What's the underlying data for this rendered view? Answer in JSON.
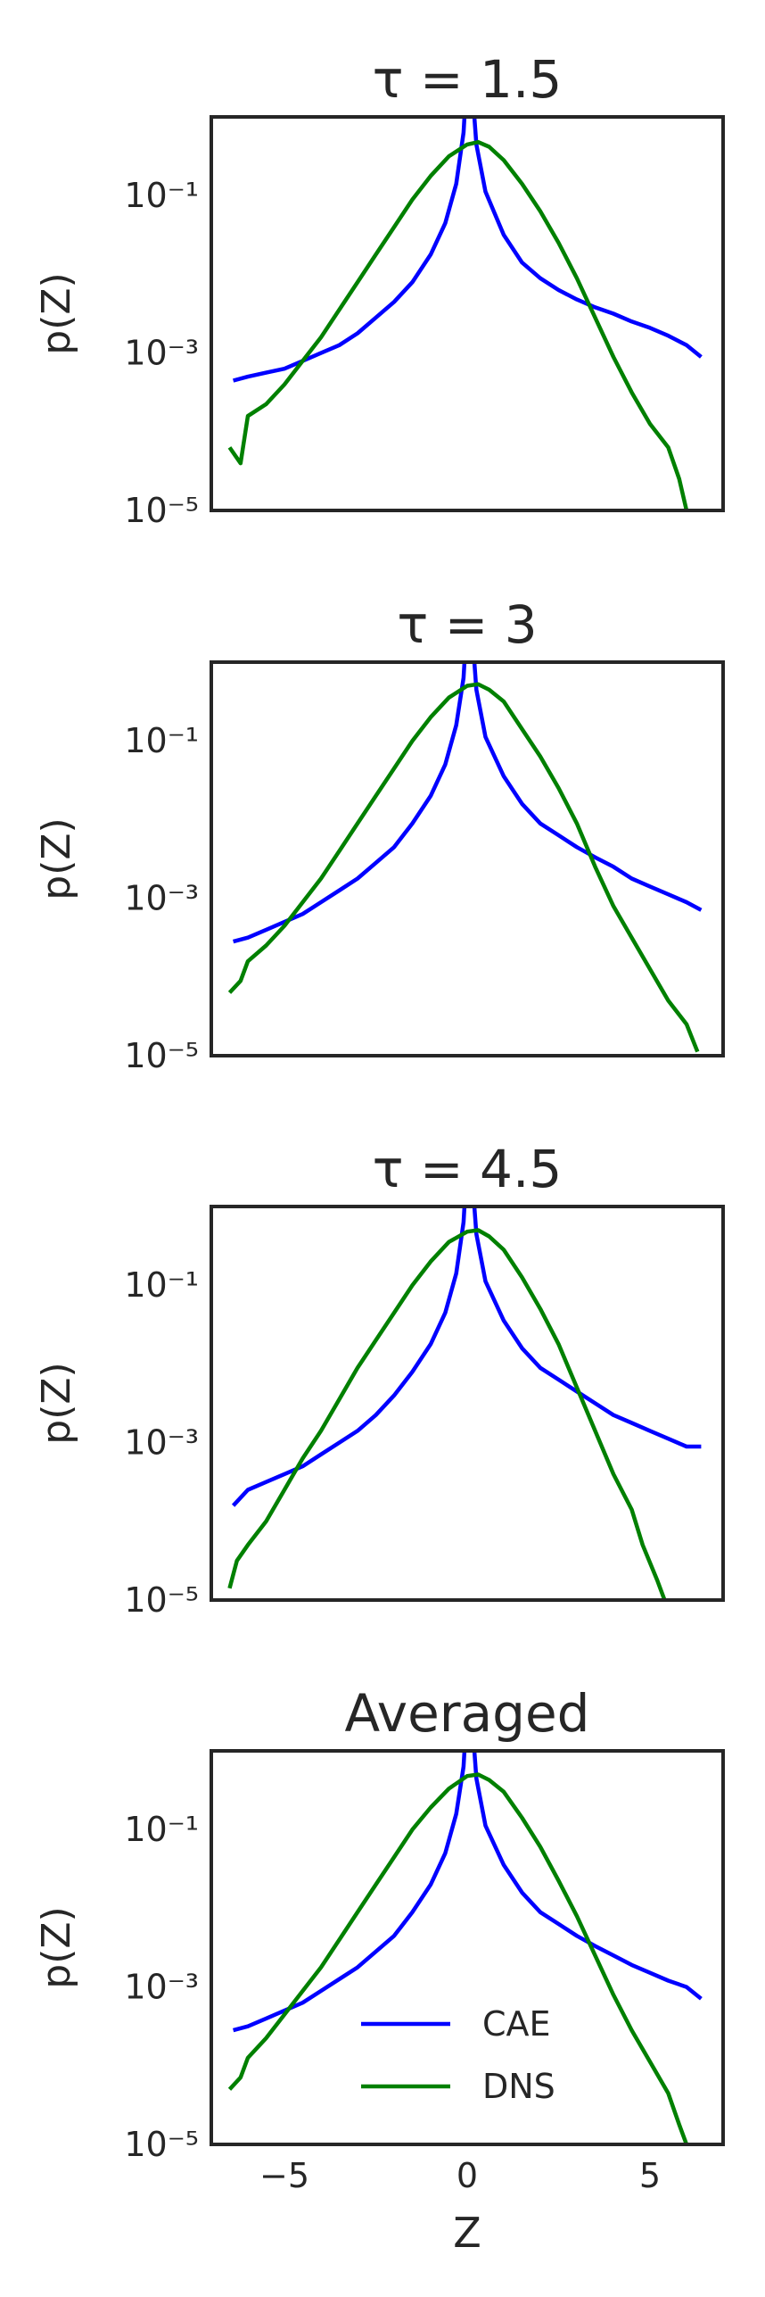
{
  "chart_data": [
    {
      "type": "line",
      "title": "τ = 1.5",
      "xlabel": "",
      "ylabel": "p(Z)",
      "xlim": [
        -7,
        7
      ],
      "ylim_log10": [
        -5,
        0
      ],
      "yscale": "log",
      "yticks": [
        "10⁻¹",
        "10⁻³",
        "10⁻⁵"
      ],
      "xticks": [],
      "grid": false,
      "series": [
        {
          "name": "CAE",
          "color": "#0000ff",
          "points": [
            [
              -6.4,
              -3.35
            ],
            [
              -6.0,
              -3.3
            ],
            [
              -5.5,
              -3.25
            ],
            [
              -5.0,
              -3.2
            ],
            [
              -4.5,
              -3.1
            ],
            [
              -4.0,
              -3.0
            ],
            [
              -3.5,
              -2.9
            ],
            [
              -3.0,
              -2.75
            ],
            [
              -2.5,
              -2.55
            ],
            [
              -2.0,
              -2.35
            ],
            [
              -1.5,
              -2.1
            ],
            [
              -1.0,
              -1.75
            ],
            [
              -0.6,
              -1.35
            ],
            [
              -0.3,
              -0.85
            ],
            [
              -0.1,
              -0.2
            ],
            [
              0.0,
              0.6
            ],
            [
              0.1,
              0.6
            ],
            [
              0.25,
              -0.35
            ],
            [
              0.5,
              -0.95
            ],
            [
              1.0,
              -1.5
            ],
            [
              1.5,
              -1.85
            ],
            [
              2.0,
              -2.05
            ],
            [
              2.5,
              -2.2
            ],
            [
              3.0,
              -2.32
            ],
            [
              3.5,
              -2.42
            ],
            [
              4.0,
              -2.5
            ],
            [
              4.5,
              -2.6
            ],
            [
              5.0,
              -2.68
            ],
            [
              5.5,
              -2.78
            ],
            [
              6.0,
              -2.9
            ],
            [
              6.4,
              -3.05
            ]
          ]
        },
        {
          "name": "DNS",
          "color": "#008000",
          "points": [
            [
              -6.5,
              -4.2
            ],
            [
              -6.2,
              -4.4
            ],
            [
              -6.0,
              -3.8
            ],
            [
              -5.5,
              -3.65
            ],
            [
              -5.0,
              -3.4
            ],
            [
              -4.5,
              -3.1
            ],
            [
              -4.0,
              -2.8
            ],
            [
              -3.5,
              -2.45
            ],
            [
              -3.0,
              -2.1
            ],
            [
              -2.5,
              -1.75
            ],
            [
              -2.0,
              -1.4
            ],
            [
              -1.5,
              -1.05
            ],
            [
              -1.0,
              -0.75
            ],
            [
              -0.5,
              -0.5
            ],
            [
              0.0,
              -0.35
            ],
            [
              0.3,
              -0.32
            ],
            [
              0.6,
              -0.38
            ],
            [
              1.0,
              -0.55
            ],
            [
              1.5,
              -0.85
            ],
            [
              2.0,
              -1.2
            ],
            [
              2.5,
              -1.6
            ],
            [
              3.0,
              -2.05
            ],
            [
              3.5,
              -2.55
            ],
            [
              4.0,
              -3.05
            ],
            [
              4.5,
              -3.5
            ],
            [
              5.0,
              -3.9
            ],
            [
              5.5,
              -4.2
            ],
            [
              5.8,
              -4.6
            ],
            [
              6.0,
              -5.0
            ]
          ]
        }
      ]
    },
    {
      "type": "line",
      "title": "τ = 3",
      "xlabel": "",
      "ylabel": "p(Z)",
      "xlim": [
        -7,
        7
      ],
      "ylim_log10": [
        -5,
        0
      ],
      "yscale": "log",
      "yticks": [
        "10⁻¹",
        "10⁻³",
        "10⁻⁵"
      ],
      "xticks": [],
      "grid": false,
      "series": [
        {
          "name": "CAE",
          "color": "#0000ff",
          "points": [
            [
              -6.4,
              -3.55
            ],
            [
              -6.0,
              -3.5
            ],
            [
              -5.5,
              -3.4
            ],
            [
              -5.0,
              -3.3
            ],
            [
              -4.5,
              -3.2
            ],
            [
              -4.0,
              -3.05
            ],
            [
              -3.5,
              -2.9
            ],
            [
              -3.0,
              -2.75
            ],
            [
              -2.5,
              -2.55
            ],
            [
              -2.0,
              -2.35
            ],
            [
              -1.5,
              -2.05
            ],
            [
              -1.0,
              -1.7
            ],
            [
              -0.6,
              -1.3
            ],
            [
              -0.3,
              -0.8
            ],
            [
              -0.1,
              -0.2
            ],
            [
              0.0,
              0.6
            ],
            [
              0.1,
              0.6
            ],
            [
              0.25,
              -0.35
            ],
            [
              0.5,
              -0.95
            ],
            [
              1.0,
              -1.45
            ],
            [
              1.5,
              -1.8
            ],
            [
              2.0,
              -2.05
            ],
            [
              2.5,
              -2.2
            ],
            [
              3.0,
              -2.35
            ],
            [
              3.5,
              -2.48
            ],
            [
              4.0,
              -2.6
            ],
            [
              4.5,
              -2.75
            ],
            [
              5.0,
              -2.85
            ],
            [
              5.5,
              -2.95
            ],
            [
              6.0,
              -3.05
            ],
            [
              6.4,
              -3.15
            ]
          ]
        },
        {
          "name": "DNS",
          "color": "#008000",
          "points": [
            [
              -6.5,
              -4.2
            ],
            [
              -6.2,
              -4.05
            ],
            [
              -6.0,
              -3.8
            ],
            [
              -5.5,
              -3.6
            ],
            [
              -5.0,
              -3.35
            ],
            [
              -4.5,
              -3.05
            ],
            [
              -4.0,
              -2.75
            ],
            [
              -3.5,
              -2.4
            ],
            [
              -3.0,
              -2.05
            ],
            [
              -2.5,
              -1.7
            ],
            [
              -2.0,
              -1.35
            ],
            [
              -1.5,
              -1.0
            ],
            [
              -1.0,
              -0.7
            ],
            [
              -0.5,
              -0.45
            ],
            [
              0.0,
              -0.3
            ],
            [
              0.3,
              -0.28
            ],
            [
              0.6,
              -0.35
            ],
            [
              1.0,
              -0.5
            ],
            [
              1.5,
              -0.85
            ],
            [
              2.0,
              -1.2
            ],
            [
              2.5,
              -1.6
            ],
            [
              3.0,
              -2.05
            ],
            [
              3.5,
              -2.6
            ],
            [
              4.0,
              -3.1
            ],
            [
              4.5,
              -3.5
            ],
            [
              5.0,
              -3.9
            ],
            [
              5.5,
              -4.3
            ],
            [
              6.0,
              -4.6
            ],
            [
              6.3,
              -4.95
            ]
          ]
        }
      ]
    },
    {
      "type": "line",
      "title": "τ = 4.5",
      "xlabel": "",
      "ylabel": "p(Z)",
      "xlim": [
        -7,
        7
      ],
      "ylim_log10": [
        -5,
        0
      ],
      "yscale": "log",
      "yticks": [
        "10⁻¹",
        "10⁻³",
        "10⁻⁵"
      ],
      "xticks": [],
      "grid": false,
      "series": [
        {
          "name": "CAE",
          "color": "#0000ff",
          "points": [
            [
              -6.4,
              -3.8
            ],
            [
              -6.0,
              -3.6
            ],
            [
              -5.5,
              -3.5
            ],
            [
              -5.0,
              -3.4
            ],
            [
              -4.5,
              -3.3
            ],
            [
              -4.0,
              -3.15
            ],
            [
              -3.5,
              -3.0
            ],
            [
              -3.0,
              -2.85
            ],
            [
              -2.5,
              -2.65
            ],
            [
              -2.0,
              -2.4
            ],
            [
              -1.5,
              -2.1
            ],
            [
              -1.0,
              -1.75
            ],
            [
              -0.6,
              -1.35
            ],
            [
              -0.3,
              -0.85
            ],
            [
              -0.1,
              -0.2
            ],
            [
              0.0,
              0.6
            ],
            [
              0.1,
              0.6
            ],
            [
              0.25,
              -0.35
            ],
            [
              0.5,
              -0.95
            ],
            [
              1.0,
              -1.45
            ],
            [
              1.5,
              -1.8
            ],
            [
              2.0,
              -2.05
            ],
            [
              2.5,
              -2.2
            ],
            [
              3.0,
              -2.35
            ],
            [
              3.5,
              -2.5
            ],
            [
              4.0,
              -2.65
            ],
            [
              4.5,
              -2.75
            ],
            [
              5.0,
              -2.85
            ],
            [
              5.5,
              -2.95
            ],
            [
              6.0,
              -3.05
            ],
            [
              6.4,
              -3.05
            ]
          ]
        },
        {
          "name": "DNS",
          "color": "#008000",
          "points": [
            [
              -6.5,
              -4.85
            ],
            [
              -6.3,
              -4.5
            ],
            [
              -6.0,
              -4.3
            ],
            [
              -5.5,
              -4.0
            ],
            [
              -5.0,
              -3.6
            ],
            [
              -4.5,
              -3.2
            ],
            [
              -4.0,
              -2.85
            ],
            [
              -3.5,
              -2.45
            ],
            [
              -3.0,
              -2.05
            ],
            [
              -2.5,
              -1.7
            ],
            [
              -2.0,
              -1.35
            ],
            [
              -1.5,
              -1.0
            ],
            [
              -1.0,
              -0.7
            ],
            [
              -0.5,
              -0.45
            ],
            [
              0.0,
              -0.32
            ],
            [
              0.3,
              -0.3
            ],
            [
              0.6,
              -0.38
            ],
            [
              1.0,
              -0.55
            ],
            [
              1.5,
              -0.9
            ],
            [
              2.0,
              -1.3
            ],
            [
              2.5,
              -1.75
            ],
            [
              3.0,
              -2.3
            ],
            [
              3.5,
              -2.85
            ],
            [
              4.0,
              -3.4
            ],
            [
              4.5,
              -3.85
            ],
            [
              4.8,
              -4.3
            ],
            [
              5.2,
              -4.75
            ],
            [
              5.4,
              -5.0
            ]
          ]
        }
      ]
    },
    {
      "type": "line",
      "title": "Averaged",
      "xlabel": "Z",
      "ylabel": "p(Z)",
      "xlim": [
        -7,
        7
      ],
      "ylim_log10": [
        -5,
        0
      ],
      "yscale": "log",
      "yticks": [
        "10⁻¹",
        "10⁻³",
        "10⁻⁵"
      ],
      "xticks": [
        "−5",
        "0",
        "5"
      ],
      "xtick_values": [
        -5,
        0,
        5
      ],
      "grid": false,
      "legend": "lower-center",
      "series": [
        {
          "name": "CAE",
          "color": "#0000ff",
          "points": [
            [
              -6.4,
              -3.55
            ],
            [
              -6.0,
              -3.5
            ],
            [
              -5.5,
              -3.4
            ],
            [
              -5.0,
              -3.3
            ],
            [
              -4.5,
              -3.2
            ],
            [
              -4.0,
              -3.05
            ],
            [
              -3.5,
              -2.9
            ],
            [
              -3.0,
              -2.75
            ],
            [
              -2.5,
              -2.55
            ],
            [
              -2.0,
              -2.35
            ],
            [
              -1.5,
              -2.05
            ],
            [
              -1.0,
              -1.7
            ],
            [
              -0.6,
              -1.3
            ],
            [
              -0.3,
              -0.8
            ],
            [
              -0.1,
              -0.2
            ],
            [
              0.0,
              0.6
            ],
            [
              0.1,
              0.6
            ],
            [
              0.25,
              -0.35
            ],
            [
              0.5,
              -0.95
            ],
            [
              1.0,
              -1.45
            ],
            [
              1.5,
              -1.8
            ],
            [
              2.0,
              -2.05
            ],
            [
              2.5,
              -2.2
            ],
            [
              3.0,
              -2.35
            ],
            [
              3.5,
              -2.48
            ],
            [
              4.0,
              -2.6
            ],
            [
              4.5,
              -2.72
            ],
            [
              5.0,
              -2.82
            ],
            [
              5.5,
              -2.92
            ],
            [
              6.0,
              -3.0
            ],
            [
              6.4,
              -3.15
            ]
          ]
        },
        {
          "name": "DNS",
          "color": "#008000",
          "points": [
            [
              -6.5,
              -4.3
            ],
            [
              -6.2,
              -4.15
            ],
            [
              -6.0,
              -3.9
            ],
            [
              -5.5,
              -3.65
            ],
            [
              -5.0,
              -3.35
            ],
            [
              -4.5,
              -3.05
            ],
            [
              -4.0,
              -2.75
            ],
            [
              -3.5,
              -2.4
            ],
            [
              -3.0,
              -2.05
            ],
            [
              -2.5,
              -1.7
            ],
            [
              -2.0,
              -1.35
            ],
            [
              -1.5,
              -1.0
            ],
            [
              -1.0,
              -0.72
            ],
            [
              -0.5,
              -0.48
            ],
            [
              0.0,
              -0.32
            ],
            [
              0.3,
              -0.3
            ],
            [
              0.6,
              -0.37
            ],
            [
              1.0,
              -0.52
            ],
            [
              1.5,
              -0.85
            ],
            [
              2.0,
              -1.22
            ],
            [
              2.5,
              -1.65
            ],
            [
              3.0,
              -2.1
            ],
            [
              3.5,
              -2.6
            ],
            [
              4.0,
              -3.1
            ],
            [
              4.5,
              -3.55
            ],
            [
              5.0,
              -3.95
            ],
            [
              5.5,
              -4.35
            ],
            [
              5.8,
              -4.75
            ],
            [
              6.0,
              -5.0
            ]
          ]
        }
      ]
    }
  ]
}
